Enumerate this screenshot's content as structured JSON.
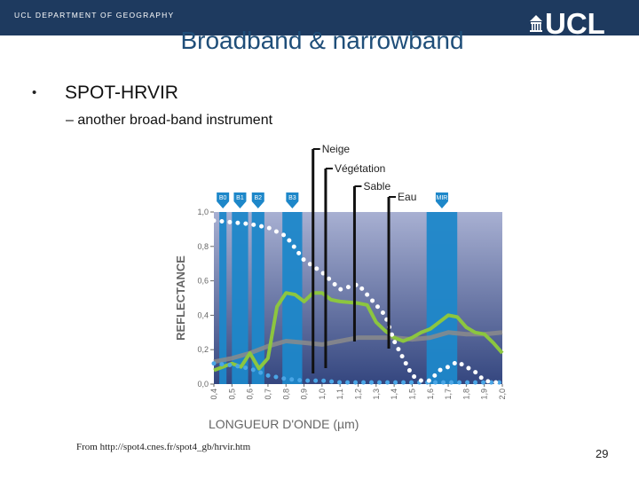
{
  "header": {
    "department": "UCL DEPARTMENT OF GEOGRAPHY",
    "logo_text": "UCL",
    "bar_color": "#1e3a5f"
  },
  "slide": {
    "title": "Broadband & narrowband",
    "bullet": "SPOT-HRVIR",
    "sub_bullet": "– another broad-band instrument",
    "source": "From http://spot4.cnes.fr/spot4_gb/hrvir.htm",
    "page_number": "29"
  },
  "chart_data": {
    "type": "line",
    "xlabel": "LONGUEUR D'ONDE (µm)",
    "ylabel": "REFLECTANCE",
    "xlim": [
      0.4,
      2.0
    ],
    "ylim": [
      0.0,
      1.0
    ],
    "x_ticks": [
      "0,4",
      "0,5",
      "0,6",
      "0,7",
      "0,8",
      "0,9",
      "1,0",
      "1,1",
      "1,2",
      "1,3",
      "1,4",
      "1,5",
      "1,6",
      "1,7",
      "1,8",
      "1,9",
      "2,0"
    ],
    "y_ticks": [
      "0,0",
      "0,2",
      "0,4",
      "0,6",
      "0,8",
      "1,0"
    ],
    "bands": [
      {
        "label": "B0",
        "from": 0.43,
        "to": 0.47
      },
      {
        "label": "B1",
        "from": 0.5,
        "to": 0.59
      },
      {
        "label": "B2",
        "from": 0.61,
        "to": 0.68
      },
      {
        "label": "B3",
        "from": 0.78,
        "to": 0.89
      },
      {
        "label": "MIR",
        "from": 1.58,
        "to": 1.75
      }
    ],
    "series": [
      {
        "name": "Neige",
        "style": "dotted",
        "color": "#ffffff",
        "x": [
          0.4,
          0.5,
          0.6,
          0.7,
          0.8,
          0.9,
          1.0,
          1.1,
          1.2,
          1.3,
          1.35,
          1.4,
          1.45,
          1.5,
          1.55,
          1.6,
          1.65,
          1.7,
          1.75,
          1.8,
          1.85,
          1.9,
          1.95,
          2.0
        ],
        "y": [
          0.95,
          0.94,
          0.93,
          0.91,
          0.86,
          0.72,
          0.65,
          0.55,
          0.58,
          0.46,
          0.4,
          0.25,
          0.15,
          0.05,
          0.02,
          0.02,
          0.08,
          0.1,
          0.13,
          0.1,
          0.07,
          0.02,
          0.01,
          0.01
        ]
      },
      {
        "name": "Végétation",
        "style": "solid",
        "color": "#8cc63f",
        "x": [
          0.4,
          0.45,
          0.5,
          0.55,
          0.6,
          0.65,
          0.7,
          0.75,
          0.8,
          0.85,
          0.9,
          0.95,
          1.0,
          1.05,
          1.1,
          1.2,
          1.25,
          1.3,
          1.35,
          1.4,
          1.45,
          1.5,
          1.55,
          1.6,
          1.65,
          1.7,
          1.75,
          1.8,
          1.85,
          1.9,
          1.95,
          2.0
        ],
        "y": [
          0.08,
          0.1,
          0.12,
          0.1,
          0.18,
          0.09,
          0.15,
          0.45,
          0.53,
          0.52,
          0.48,
          0.53,
          0.53,
          0.49,
          0.48,
          0.47,
          0.46,
          0.36,
          0.31,
          0.27,
          0.25,
          0.27,
          0.3,
          0.32,
          0.36,
          0.4,
          0.39,
          0.33,
          0.3,
          0.29,
          0.24,
          0.18
        ]
      },
      {
        "name": "Sable",
        "style": "solid",
        "color": "#8b8b8b",
        "x": [
          0.4,
          0.5,
          0.6,
          0.7,
          0.8,
          0.9,
          1.0,
          1.1,
          1.2,
          1.3,
          1.4,
          1.5,
          1.6,
          1.7,
          1.8,
          1.9,
          2.0
        ],
        "y": [
          0.13,
          0.15,
          0.18,
          0.22,
          0.25,
          0.24,
          0.23,
          0.25,
          0.27,
          0.27,
          0.27,
          0.26,
          0.27,
          0.3,
          0.29,
          0.29,
          0.3
        ]
      },
      {
        "name": "Eau",
        "style": "dotted",
        "color": "#4aa6e6",
        "x": [
          0.4,
          0.5,
          0.6,
          0.7,
          0.8,
          0.9,
          1.0,
          1.1,
          1.2,
          1.3,
          1.4,
          1.5,
          1.6,
          1.7,
          1.8,
          1.9,
          2.0
        ],
        "y": [
          0.12,
          0.11,
          0.09,
          0.05,
          0.03,
          0.02,
          0.02,
          0.01,
          0.01,
          0.01,
          0.01,
          0.01,
          0.01,
          0.01,
          0.01,
          0.01,
          0.01
        ]
      }
    ],
    "annotations": [
      {
        "text": "Neige",
        "x": 0.95
      },
      {
        "text": "Végétation",
        "x": 1.02
      },
      {
        "text": "Sable",
        "x": 1.18
      },
      {
        "text": "Eau",
        "x": 1.37
      }
    ],
    "colors": {
      "plot_top": "#9fa8cc",
      "plot_bottom": "#3a4a86",
      "band": "#1d87c9",
      "label_blue": "#0d6aa8"
    }
  }
}
